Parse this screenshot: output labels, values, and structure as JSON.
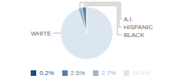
{
  "chart_data": {
    "type": "pie",
    "categories": [
      "WHITE",
      "A.I.",
      "HISPANIC",
      "BLACK"
    ],
    "values": [
      94.6,
      2.7,
      2.5,
      0.2
    ],
    "value_labels": [
      "94.6%",
      "2.7%",
      "2.5%",
      "0.2%"
    ],
    "colors": [
      "#dce6f1",
      "#9cb4cc",
      "#5a7fa0",
      "#1f4e79"
    ],
    "legend": "bottom"
  }
}
